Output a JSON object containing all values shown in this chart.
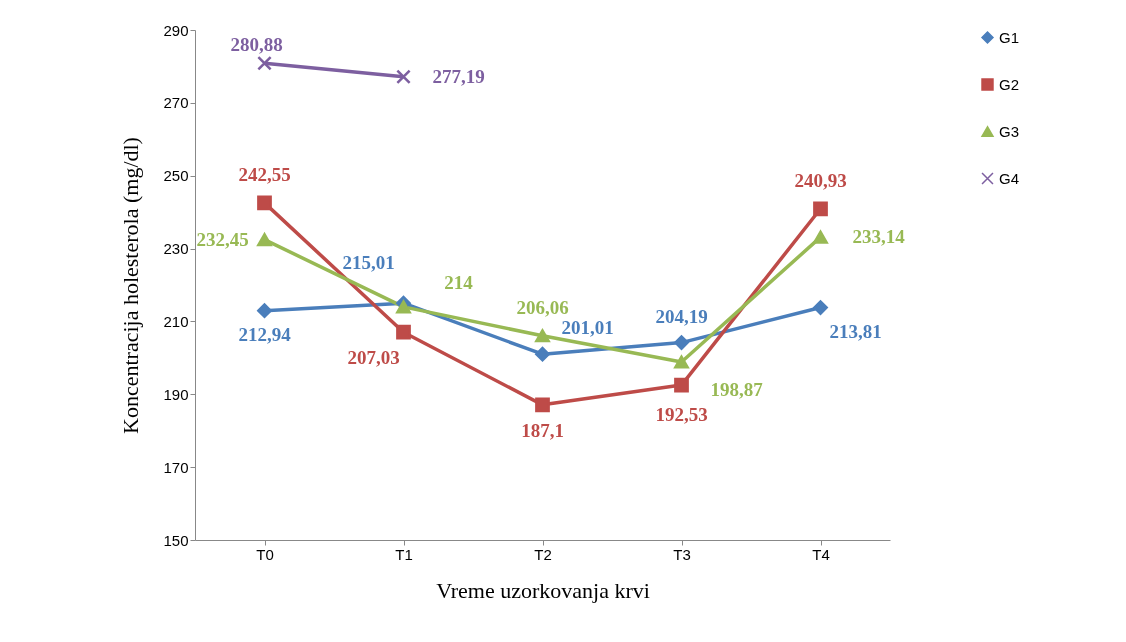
{
  "chart_data": {
    "type": "line",
    "xlabel": "Vreme uzorkovanja krvi",
    "ylabel": "Koncentracija  holesterola  (mg/dl)",
    "categories": [
      "T0",
      "T1",
      "T2",
      "T3",
      "T4"
    ],
    "series": [
      {
        "name": "G1",
        "color": "#4a7ebb",
        "marker": "diamond",
        "values": [
          212.94,
          215.01,
          201.01,
          204.19,
          213.81
        ],
        "value_labels": [
          "212,94",
          "215,01",
          "201,01",
          "204,19",
          "213,81"
        ]
      },
      {
        "name": "G2",
        "color": "#be4b48",
        "marker": "square",
        "values": [
          242.55,
          207.03,
          187.1,
          192.53,
          240.93
        ],
        "value_labels": [
          "242,55",
          "207,03",
          "187,1",
          "192,53",
          "240,93"
        ]
      },
      {
        "name": "G3",
        "color": "#98b954",
        "marker": "triangle",
        "values": [
          232.45,
          214,
          206.06,
          198.87,
          233.14
        ],
        "value_labels": [
          "232,45",
          "214",
          "206,06",
          "198,87",
          "233,14"
        ]
      },
      {
        "name": "G4",
        "color": "#7d5fa0",
        "marker": "cross",
        "values": [
          280.88,
          277.19,
          null,
          null,
          null
        ],
        "value_labels": [
          "280,88",
          "277,19",
          null,
          null,
          null
        ]
      }
    ],
    "ylim": [
      150,
      290
    ],
    "yticks": [
      150,
      170,
      190,
      210,
      230,
      250,
      270,
      290
    ],
    "grid": false,
    "legend": "right"
  }
}
